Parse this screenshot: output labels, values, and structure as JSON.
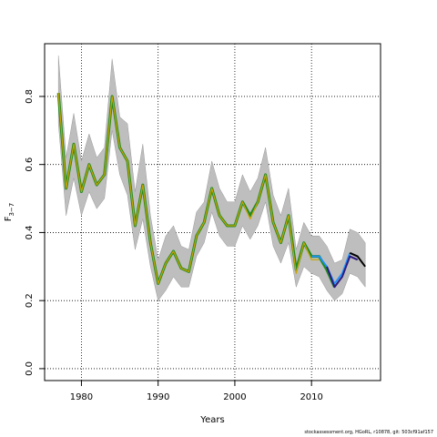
{
  "footer_text": "stockassessment.org, HGoRL, r10878, git: 503cf91af157",
  "chart_data": {
    "type": "line",
    "xlabel": "Years",
    "ylabel_main": "F",
    "ylabel_sub": "3−7",
    "xlim": [
      1975.2,
      2019.0
    ],
    "ylim": [
      -0.035,
      0.955
    ],
    "xticks": [
      1980,
      1990,
      2000,
      2010
    ],
    "yticks": [
      0.0,
      0.2,
      0.4,
      0.6,
      0.8
    ],
    "xtick_labels": [
      "1980",
      "1990",
      "2000",
      "2010"
    ],
    "ytick_labels": [
      "0.0",
      "0.2",
      "0.4",
      "0.6",
      "0.8"
    ],
    "grid": "dotted lines at every tick",
    "band_color": "#bebebe",
    "x": [
      1977,
      1978,
      1979,
      1980,
      1981,
      1982,
      1983,
      1984,
      1985,
      1986,
      1987,
      1988,
      1989,
      1990,
      1991,
      1992,
      1993,
      1994,
      1995,
      1996,
      1997,
      1998,
      1999,
      2000,
      2001,
      2002,
      2003,
      2004,
      2005,
      2006,
      2007,
      2008,
      2009,
      2010,
      2011,
      2012,
      2013,
      2014,
      2015,
      2016,
      2017
    ],
    "band_upper": [
      0.92,
      0.62,
      0.75,
      0.61,
      0.69,
      0.62,
      0.65,
      0.91,
      0.74,
      0.72,
      0.52,
      0.66,
      0.45,
      0.32,
      0.39,
      0.42,
      0.36,
      0.35,
      0.46,
      0.49,
      0.61,
      0.53,
      0.49,
      0.49,
      0.57,
      0.52,
      0.56,
      0.65,
      0.51,
      0.45,
      0.53,
      0.35,
      0.43,
      0.39,
      0.39,
      0.36,
      0.31,
      0.32,
      0.41,
      0.4,
      0.37
    ],
    "band_lower": [
      0.72,
      0.45,
      0.56,
      0.45,
      0.52,
      0.47,
      0.5,
      0.7,
      0.57,
      0.51,
      0.35,
      0.44,
      0.3,
      0.2,
      0.23,
      0.27,
      0.24,
      0.24,
      0.33,
      0.37,
      0.46,
      0.39,
      0.36,
      0.36,
      0.42,
      0.38,
      0.42,
      0.49,
      0.36,
      0.31,
      0.37,
      0.24,
      0.3,
      0.28,
      0.27,
      0.23,
      0.2,
      0.22,
      0.28,
      0.27,
      0.24
    ],
    "series": [
      {
        "color": "#228b22",
        "width": 3.0,
        "x": [
          1977,
          1978,
          1979,
          1980,
          1981,
          1982,
          1983,
          1984,
          1985,
          1986,
          1987,
          1988,
          1989,
          1990,
          1991,
          1992,
          1993,
          1994,
          1995,
          1996,
          1997,
          1998,
          1999,
          2000,
          2001,
          2002,
          2003,
          2004,
          2005,
          2006,
          2007,
          2008,
          2009,
          2010,
          2011,
          2012,
          2013
        ],
        "values": [
          0.81,
          0.53,
          0.66,
          0.52,
          0.6,
          0.54,
          0.57,
          0.8,
          0.65,
          0.61,
          0.42,
          0.54,
          0.37,
          0.25,
          0.31,
          0.345,
          0.295,
          0.285,
          0.39,
          0.43,
          0.53,
          0.45,
          0.42,
          0.42,
          0.49,
          0.45,
          0.49,
          0.57,
          0.43,
          0.37,
          0.45,
          0.29,
          0.37,
          0.33,
          0.33,
          0.29,
          0.24
        ]
      },
      {
        "color": "#1e90ff",
        "width": 1.8,
        "x": [
          2010,
          2011,
          2012,
          2013,
          2014,
          2015
        ],
        "values": [
          0.33,
          0.33,
          0.3,
          0.25,
          0.28,
          0.34
        ]
      },
      {
        "color": "#2e1a80",
        "width": 2.0,
        "x": [
          2012,
          2013,
          2014,
          2015,
          2016
        ],
        "values": [
          0.3,
          0.24,
          0.27,
          0.33,
          0.32
        ]
      },
      {
        "color": "#000000",
        "width": 2.0,
        "x": [
          2015,
          2016,
          2017
        ],
        "values": [
          0.34,
          0.33,
          0.3
        ]
      },
      {
        "color": "#c8a400",
        "width": 1.2,
        "x": [
          1977,
          1978,
          1979,
          1980,
          1981,
          1982,
          1983,
          1984,
          1985,
          1986,
          1987,
          1988,
          1989,
          1990,
          1991,
          1992,
          1993,
          1994,
          1995,
          1996,
          1997,
          1998,
          1999,
          2000,
          2001,
          2002,
          2003,
          2004,
          2005,
          2006,
          2007,
          2008,
          2009,
          2010,
          2011
        ],
        "values": [
          0.81,
          0.53,
          0.66,
          0.52,
          0.6,
          0.54,
          0.57,
          0.8,
          0.65,
          0.61,
          0.42,
          0.54,
          0.37,
          0.25,
          0.31,
          0.345,
          0.295,
          0.285,
          0.39,
          0.43,
          0.53,
          0.45,
          0.42,
          0.42,
          0.49,
          0.44,
          0.49,
          0.57,
          0.43,
          0.37,
          0.45,
          0.28,
          0.37,
          0.32,
          0.32
        ]
      }
    ]
  }
}
